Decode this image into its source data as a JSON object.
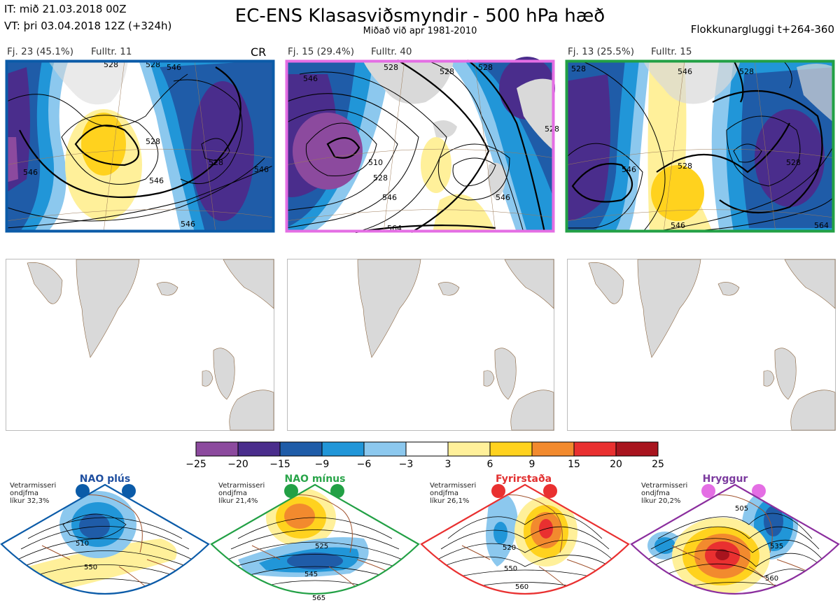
{
  "header": {
    "it_line": "IT: mið 21.03.2018 00Z",
    "vt_line": "VT: þri 03.04.2018 12Z  (+324h)",
    "title": "EC-ENS Klasasviðsmyndir - 500 hPa hæð",
    "subtitle": "Miðað við apr 1981-2010",
    "window": "Flokkunargluggi t+264-360"
  },
  "clusters": [
    {
      "label": "Fj. 23 (45.1%)",
      "rep": "Fulltr. 11",
      "tag": "CR",
      "border_color": "#0b5ba8",
      "contour_labels": [
        "546",
        "528",
        "528",
        "546",
        "546",
        "528",
        "528",
        "546",
        "546"
      ]
    },
    {
      "label": "Fj. 15 (29.4%)",
      "rep": "Fulltr. 40",
      "tag": "",
      "border_color": "#e46ee4",
      "contour_labels": [
        "546",
        "528",
        "528",
        "528",
        "528",
        "510",
        "528",
        "546",
        "564",
        "546"
      ]
    },
    {
      "label": "Fj. 13 (25.5%)",
      "rep": "Fulltr. 15",
      "tag": "",
      "border_color": "#22a045",
      "contour_labels": [
        "528",
        "546",
        "528",
        "528",
        "528",
        "546",
        "546",
        "564"
      ]
    }
  ],
  "colorbar": {
    "ticks": [
      "−25",
      "−20",
      "−15",
      "−9",
      "−6",
      "−3",
      "3",
      "6",
      "9",
      "15",
      "20",
      "25"
    ],
    "colors": [
      "#8c4a9e",
      "#4a2d8c",
      "#1f5ca8",
      "#2196d8",
      "#8cc8ee",
      "#ffffff",
      "#fff09a",
      "#ffd21e",
      "#f28a2e",
      "#e93030",
      "#a8141e"
    ]
  },
  "regimes": [
    {
      "title": "NAO plús",
      "note": [
        "Vetrarmisseri",
        "ondjfma",
        "líkur 32,3%"
      ],
      "color": "#0b5ba8",
      "labels": [
        "510",
        "550"
      ]
    },
    {
      "title": "NAO mínus",
      "note": [
        "Vetrarmisseri",
        "ondjfma",
        "líkur 21,4%"
      ],
      "color": "#22a045",
      "labels": [
        "525",
        "545",
        "565"
      ]
    },
    {
      "title": "Fyrirstaða",
      "note": [
        "Vetrarmisseri",
        "ondjfma",
        "líkur 26,1%"
      ],
      "color": "#e93030",
      "labels": [
        "520",
        "550",
        "560"
      ]
    },
    {
      "title": "Hryggur",
      "note": [
        "Vetrarmisseri",
        "ondjfma",
        "líkur 20,2%"
      ],
      "color": "#8b2e9e",
      "labels": [
        "505",
        "535",
        "560"
      ]
    }
  ]
}
